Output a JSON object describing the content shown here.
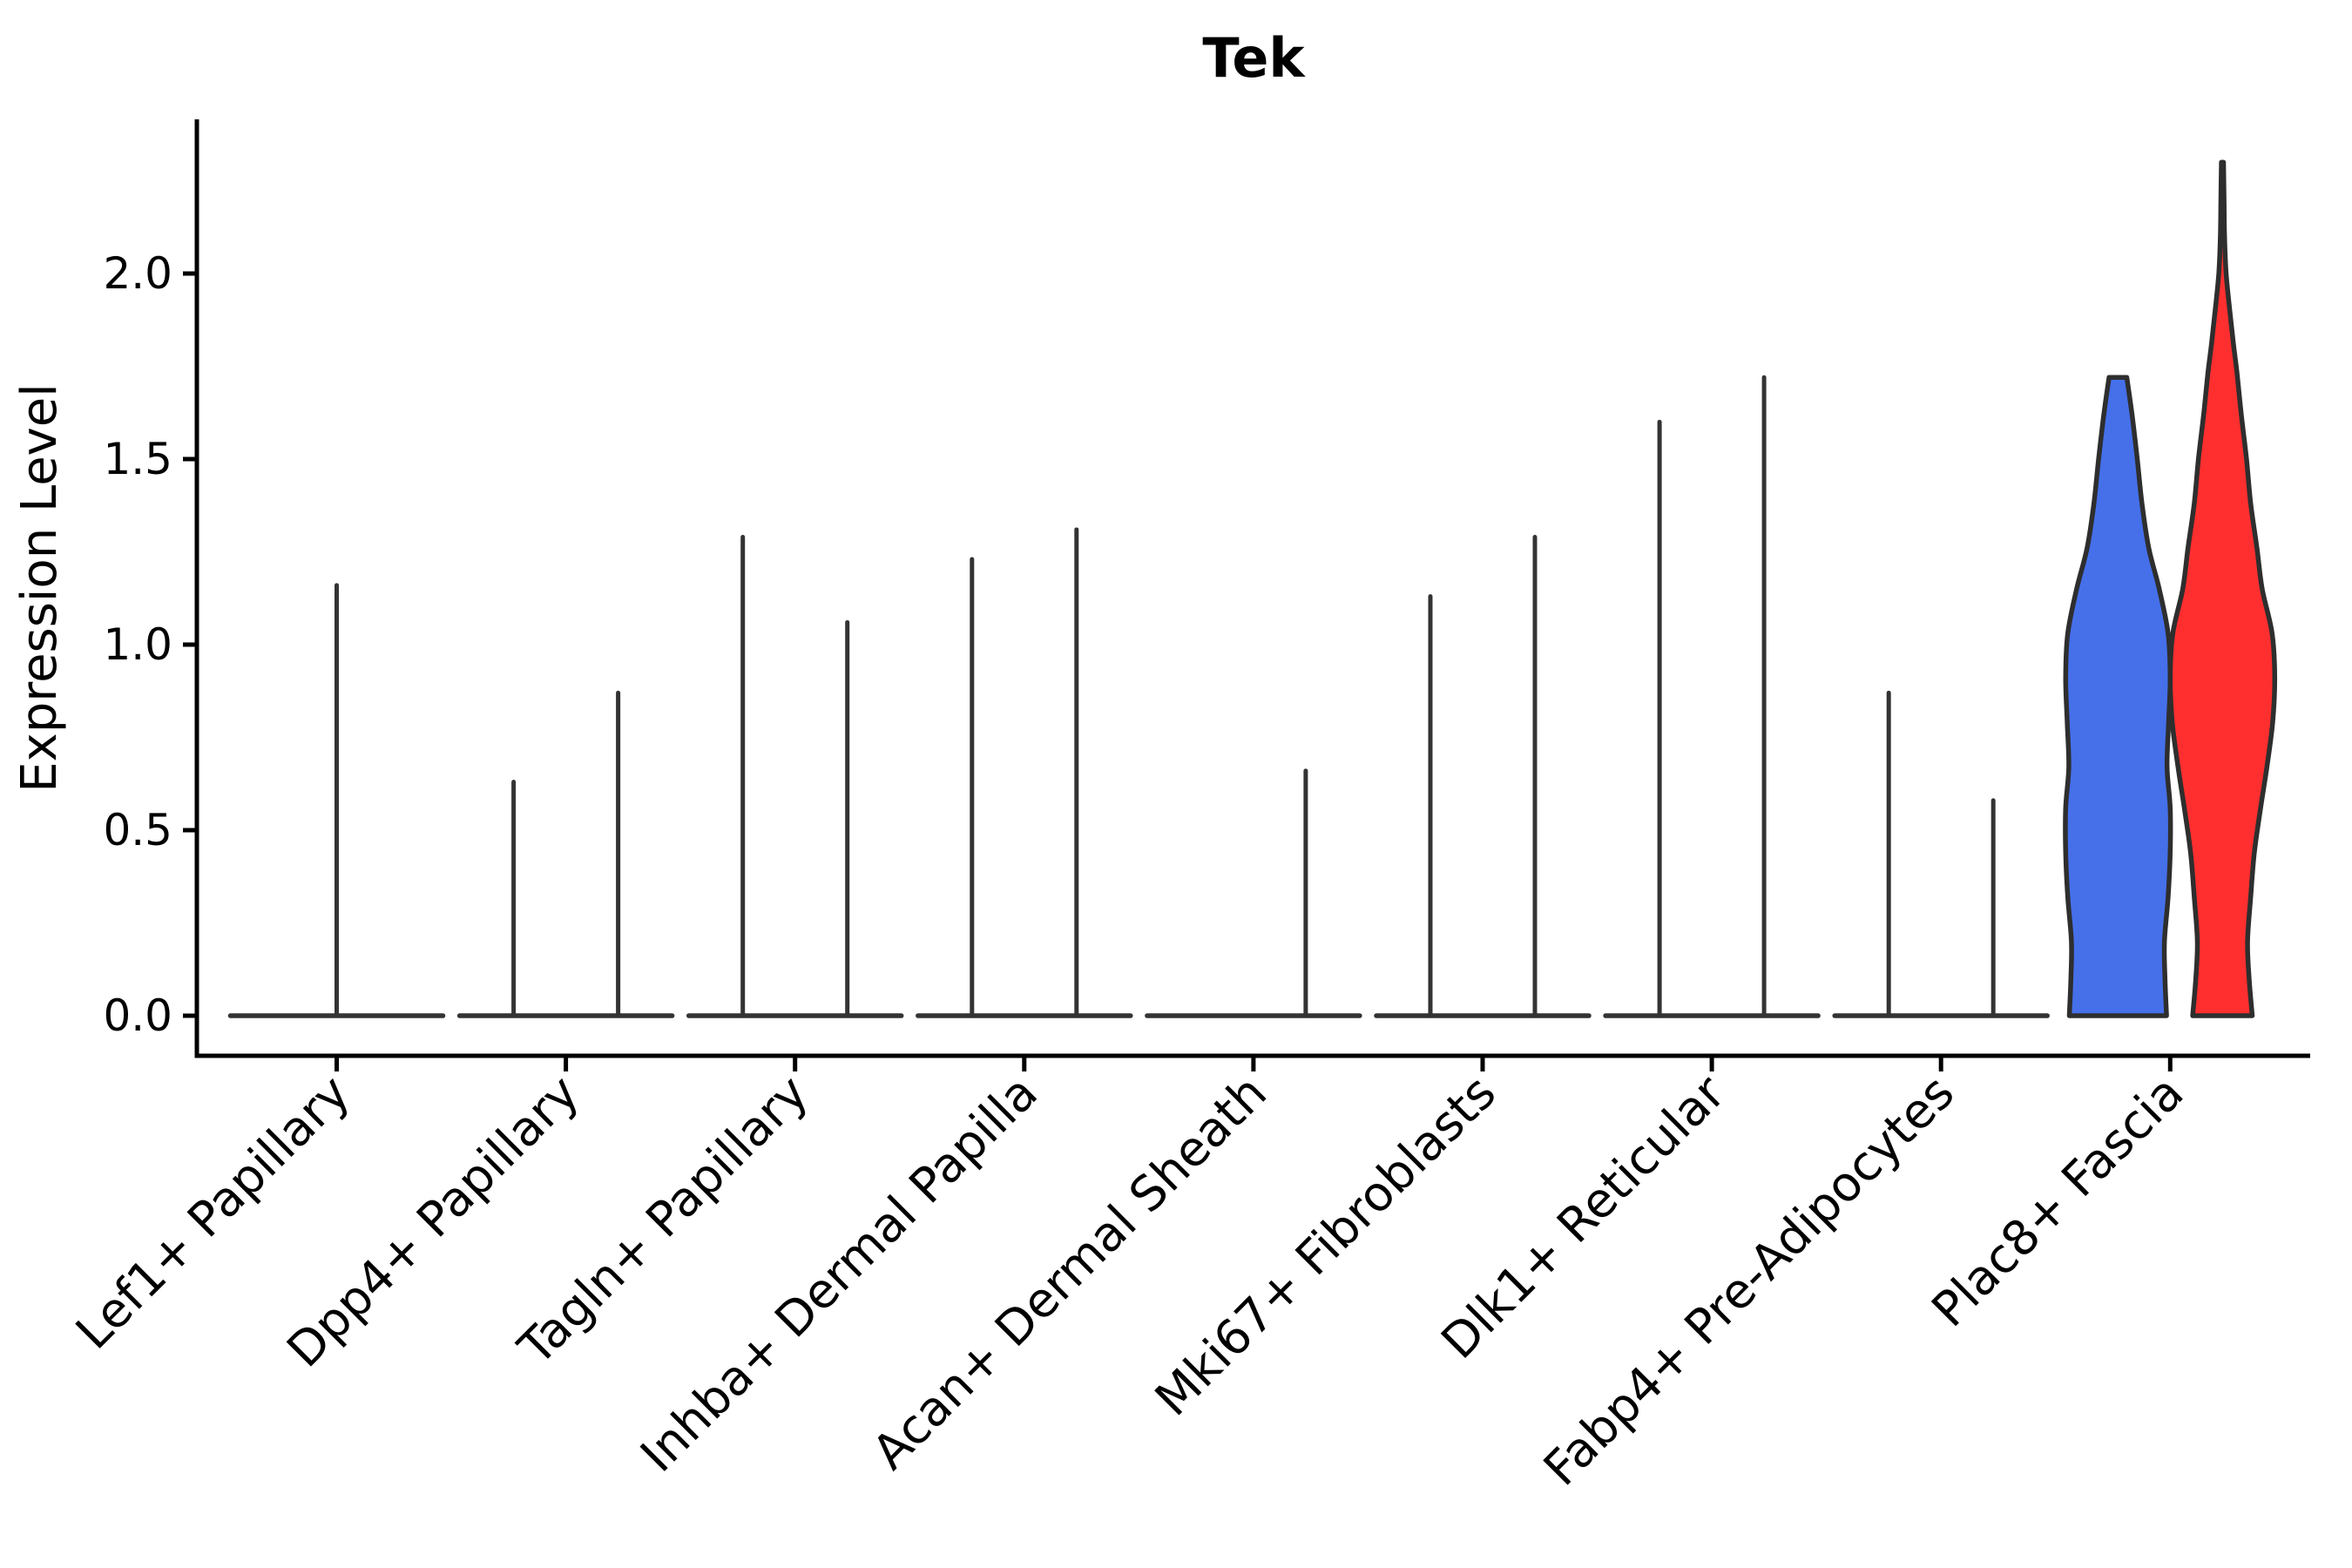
{
  "title": "Tek",
  "y_axis": {
    "label": "Expression Level",
    "tick_labels": [
      "0.0",
      "0.5",
      "1.0",
      "1.5",
      "2.0"
    ]
  },
  "chart_data": {
    "type": "violin",
    "title": "Tek",
    "xlabel": "",
    "ylabel": "Expression Level",
    "ylim": [
      -0.11,
      2.42
    ],
    "ytick_values": [
      0.0,
      0.5,
      1.0,
      1.5,
      2.0
    ],
    "grid": false,
    "legend": "none",
    "categories": [
      "Lef1+ Papillary",
      "Dpp4+ Papillary",
      "Tagln+ Papillary",
      "Inhba+ Dermal Papilla",
      "Acan+ Dermal Sheath",
      "Mki67+ Fibroblasts",
      "Dlk1+ Reticular",
      "Fabp4+ Pre-Adipocytes",
      "Plac8+ Fascia"
    ],
    "baseline_categories": [
      0,
      1,
      2,
      3,
      4,
      5,
      6,
      7
    ],
    "violins": [
      {
        "category": "Lef1+ Papillary",
        "position": "center",
        "shape": "spike",
        "max_expression": 1.16
      },
      {
        "category": "Dpp4+ Papillary",
        "position": "left",
        "shape": "spike",
        "max_expression": 0.63
      },
      {
        "category": "Dpp4+ Papillary",
        "position": "right",
        "shape": "spike",
        "max_expression": 0.87
      },
      {
        "category": "Tagln+ Papillary",
        "position": "left",
        "shape": "spike",
        "max_expression": 1.29
      },
      {
        "category": "Tagln+ Papillary",
        "position": "right",
        "shape": "spike",
        "max_expression": 1.06
      },
      {
        "category": "Inhba+ Dermal Papilla",
        "position": "left",
        "shape": "spike",
        "max_expression": 1.23
      },
      {
        "category": "Inhba+ Dermal Papilla",
        "position": "right",
        "shape": "spike",
        "max_expression": 1.31
      },
      {
        "category": "Acan+ Dermal Sheath",
        "position": "right",
        "shape": "spike",
        "max_expression": 0.66
      },
      {
        "category": "Mki67+ Fibroblasts",
        "position": "left",
        "shape": "spike",
        "max_expression": 1.13
      },
      {
        "category": "Mki67+ Fibroblasts",
        "position": "right",
        "shape": "spike",
        "max_expression": 1.29
      },
      {
        "category": "Dlk1+ Reticular",
        "position": "left",
        "shape": "spike",
        "max_expression": 1.6
      },
      {
        "category": "Dlk1+ Reticular",
        "position": "right",
        "shape": "spike",
        "max_expression": 1.72
      },
      {
        "category": "Fabp4+ Pre-Adipocytes",
        "position": "left",
        "shape": "spike",
        "max_expression": 0.87
      },
      {
        "category": "Fabp4+ Pre-Adipocytes",
        "position": "right",
        "shape": "spike",
        "max_expression": 0.58
      },
      {
        "category": "Plac8+ Fascia",
        "position": "left",
        "shape": "violin",
        "max_expression": 1.72,
        "fill": "#4570EA",
        "profile": [
          [
            0,
            0.93
          ],
          [
            0.1,
            0.9
          ],
          [
            0.2,
            0.89
          ],
          [
            0.32,
            0.96
          ],
          [
            0.44,
            1.0
          ],
          [
            0.56,
            1.0
          ],
          [
            0.67,
            0.94
          ],
          [
            0.79,
            0.97
          ],
          [
            0.91,
            1.0
          ],
          [
            1.03,
            0.96
          ],
          [
            1.15,
            0.79
          ],
          [
            1.26,
            0.59
          ],
          [
            1.38,
            0.46
          ],
          [
            1.5,
            0.37
          ],
          [
            1.62,
            0.27
          ],
          [
            1.72,
            0.17
          ]
        ]
      },
      {
        "category": "Plac8+ Fascia",
        "position": "right",
        "shape": "violin",
        "max_expression": 2.3,
        "fill": "#FF2F2F",
        "profile": [
          [
            0,
            0.57
          ],
          [
            0.1,
            0.51
          ],
          [
            0.2,
            0.48
          ],
          [
            0.32,
            0.54
          ],
          [
            0.44,
            0.61
          ],
          [
            0.56,
            0.73
          ],
          [
            0.67,
            0.85
          ],
          [
            0.79,
            0.96
          ],
          [
            0.91,
            1.0
          ],
          [
            1.03,
            0.95
          ],
          [
            1.15,
            0.76
          ],
          [
            1.26,
            0.66
          ],
          [
            1.38,
            0.54
          ],
          [
            1.5,
            0.46
          ],
          [
            1.62,
            0.36
          ],
          [
            1.73,
            0.28
          ],
          [
            1.81,
            0.21
          ],
          [
            1.9,
            0.14
          ],
          [
            2.0,
            0.07
          ],
          [
            2.1,
            0.04
          ],
          [
            2.2,
            0.03
          ],
          [
            2.3,
            0.02
          ]
        ]
      }
    ],
    "colors": {
      "blue_fill": "#4570EA",
      "red_fill": "#FF2F2F",
      "spike_outline": "#333333",
      "violin_outline": "#2E2E2E",
      "axis": "#000000",
      "background": "#FFFFFF"
    }
  }
}
